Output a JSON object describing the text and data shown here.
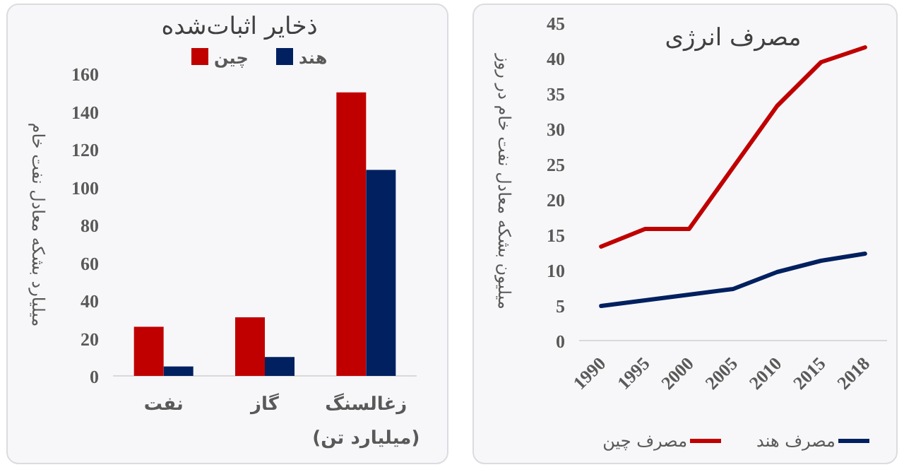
{
  "chart_data": [
    {
      "type": "bar",
      "title": "ذخایر اثبات‌شده",
      "ylabel": "میلیارد بشکه معادل نفت خام",
      "categories": [
        "نفت",
        "گاز",
        "زغالسنگ\n(میلیارد تن)"
      ],
      "ylim": [
        0,
        160
      ],
      "yticks": [
        0,
        20,
        40,
        60,
        80,
        100,
        120,
        140,
        160
      ],
      "legend": "top",
      "series": [
        {
          "name": "چین",
          "color": "#c00000",
          "values": [
            26,
            31,
            150
          ]
        },
        {
          "name": "هند",
          "color": "#002060",
          "values": [
            5,
            10,
            109
          ]
        }
      ]
    },
    {
      "type": "line",
      "title": "مصرف انرژی",
      "ylabel": "میلیون بشکه معادل نفت خام در روز",
      "categories": [
        "1990",
        "1995",
        "2000",
        "2005",
        "2010",
        "2015",
        "2018"
      ],
      "ylim": [
        0,
        45
      ],
      "yticks": [
        0,
        5,
        10,
        15,
        20,
        25,
        30,
        35,
        40,
        45
      ],
      "legend": "bottom",
      "series": [
        {
          "name": "مصرف چین",
          "color": "#c00000",
          "values": [
            13.3,
            15.8,
            15.8,
            24.5,
            33.2,
            39.4,
            41.5
          ]
        },
        {
          "name": "مصرف هند",
          "color": "#002060",
          "values": [
            4.9,
            5.7,
            6.5,
            7.3,
            9.7,
            11.3,
            12.3
          ]
        }
      ]
    }
  ]
}
